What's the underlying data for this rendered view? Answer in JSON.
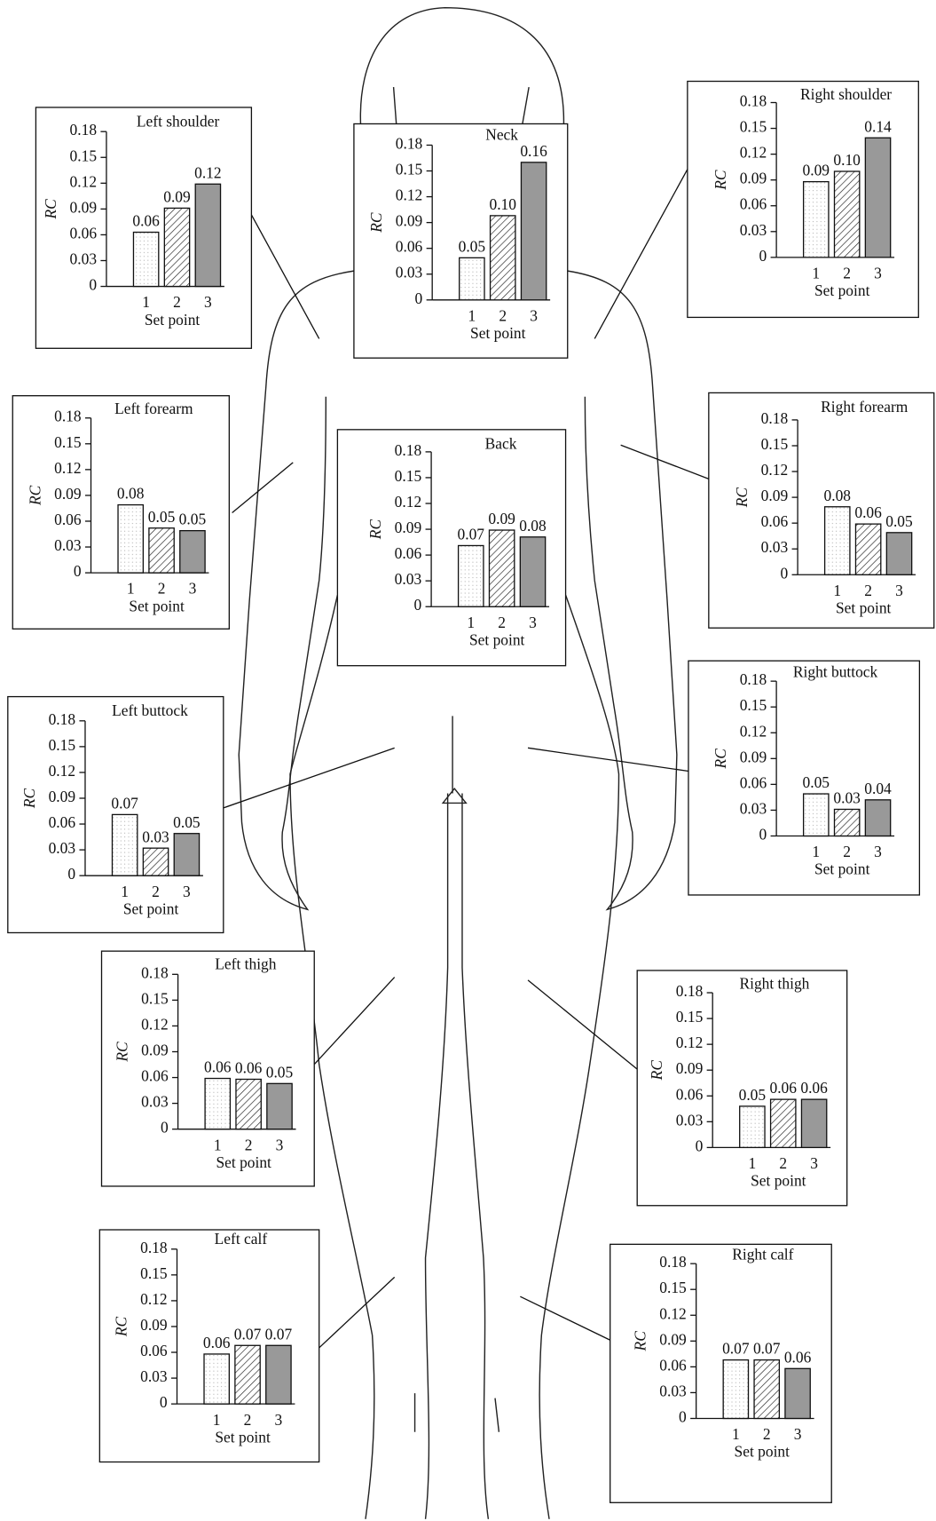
{
  "chart_data": [
    {
      "type": "bar",
      "title": "Left shoulder",
      "ylabel": "RC",
      "xlabel": "Set point",
      "categories": [
        "1",
        "2",
        "3"
      ],
      "values": [
        0.063,
        0.091,
        0.119
      ],
      "value_labels": [
        "0.06",
        "0.09",
        "0.12"
      ],
      "ylim": [
        0,
        0.18
      ],
      "yticks": [
        0,
        0.03,
        0.06,
        0.09,
        0.12,
        0.15,
        0.18
      ]
    },
    {
      "type": "bar",
      "title": "Neck",
      "ylabel": "RC",
      "xlabel": "Set point",
      "categories": [
        "1",
        "2",
        "3"
      ],
      "values": [
        0.049,
        0.098,
        0.16
      ],
      "value_labels": [
        "0.05",
        "0.10",
        "0.16"
      ],
      "ylim": [
        0,
        0.18
      ],
      "yticks": [
        0,
        0.03,
        0.06,
        0.09,
        0.12,
        0.15,
        0.18
      ]
    },
    {
      "type": "bar",
      "title": "Right shoulder",
      "ylabel": "RC",
      "xlabel": "Set point",
      "categories": [
        "1",
        "2",
        "3"
      ],
      "values": [
        0.088,
        0.1,
        0.139
      ],
      "value_labels": [
        "0.09",
        "0.10",
        "0.14"
      ],
      "ylim": [
        0,
        0.18
      ],
      "yticks": [
        0,
        0.03,
        0.06,
        0.09,
        0.12,
        0.15,
        0.18
      ]
    },
    {
      "type": "bar",
      "title": "Left forearm",
      "ylabel": "RC",
      "xlabel": "Set point",
      "categories": [
        "1",
        "2",
        "3"
      ],
      "values": [
        0.079,
        0.052,
        0.049
      ],
      "value_labels": [
        "0.08",
        "0.05",
        "0.05"
      ],
      "ylim": [
        0,
        0.18
      ],
      "yticks": [
        0,
        0.03,
        0.06,
        0.09,
        0.12,
        0.15,
        0.18
      ]
    },
    {
      "type": "bar",
      "title": "Back",
      "ylabel": "RC",
      "xlabel": "Set point",
      "categories": [
        "1",
        "2",
        "3"
      ],
      "values": [
        0.071,
        0.089,
        0.081
      ],
      "value_labels": [
        "0.07",
        "0.09",
        "0.08"
      ],
      "ylim": [
        0,
        0.18
      ],
      "yticks": [
        0,
        0.03,
        0.06,
        0.09,
        0.12,
        0.15,
        0.18
      ]
    },
    {
      "type": "bar",
      "title": "Right forearm",
      "ylabel": "RC",
      "xlabel": "Set point",
      "categories": [
        "1",
        "2",
        "3"
      ],
      "values": [
        0.079,
        0.059,
        0.049
      ],
      "value_labels": [
        "0.08",
        "0.06",
        "0.05"
      ],
      "ylim": [
        0,
        0.18
      ],
      "yticks": [
        0,
        0.03,
        0.06,
        0.09,
        0.12,
        0.15,
        0.18
      ]
    },
    {
      "type": "bar",
      "title": "Left buttock",
      "ylabel": "RC",
      "xlabel": "Set point",
      "categories": [
        "1",
        "2",
        "3"
      ],
      "values": [
        0.071,
        0.032,
        0.049
      ],
      "value_labels": [
        "0.07",
        "0.03",
        "0.05"
      ],
      "ylim": [
        0,
        0.18
      ],
      "yticks": [
        0,
        0.03,
        0.06,
        0.09,
        0.12,
        0.15,
        0.18
      ]
    },
    {
      "type": "bar",
      "title": "Right buttock",
      "ylabel": "RC",
      "xlabel": "Set point",
      "categories": [
        "1",
        "2",
        "3"
      ],
      "values": [
        0.049,
        0.031,
        0.042
      ],
      "value_labels": [
        "0.05",
        "0.03",
        "0.04"
      ],
      "ylim": [
        0,
        0.18
      ],
      "yticks": [
        0,
        0.03,
        0.06,
        0.09,
        0.12,
        0.15,
        0.18
      ]
    },
    {
      "type": "bar",
      "title": "Left thigh",
      "ylabel": "RC",
      "xlabel": "Set point",
      "categories": [
        "1",
        "2",
        "3"
      ],
      "values": [
        0.059,
        0.058,
        0.053
      ],
      "value_labels": [
        "0.06",
        "0.06",
        "0.05"
      ],
      "ylim": [
        0,
        0.18
      ],
      "yticks": [
        0,
        0.03,
        0.06,
        0.09,
        0.12,
        0.15,
        0.18
      ]
    },
    {
      "type": "bar",
      "title": "Right thigh",
      "ylabel": "RC",
      "xlabel": "Set point",
      "categories": [
        "1",
        "2",
        "3"
      ],
      "values": [
        0.048,
        0.056,
        0.056
      ],
      "value_labels": [
        "0.05",
        "0.06",
        "0.06"
      ],
      "ylim": [
        0,
        0.18
      ],
      "yticks": [
        0,
        0.03,
        0.06,
        0.09,
        0.12,
        0.15,
        0.18
      ]
    },
    {
      "type": "bar",
      "title": "Left calf",
      "ylabel": "RC",
      "xlabel": "Set point",
      "categories": [
        "1",
        "2",
        "3"
      ],
      "values": [
        0.058,
        0.068,
        0.068
      ],
      "value_labels": [
        "0.06",
        "0.07",
        "0.07"
      ],
      "ylim": [
        0,
        0.18
      ],
      "yticks": [
        0,
        0.03,
        0.06,
        0.09,
        0.12,
        0.15,
        0.18
      ]
    },
    {
      "type": "bar",
      "title": "Right calf",
      "ylabel": "RC",
      "xlabel": "Set point",
      "categories": [
        "1",
        "2",
        "3"
      ],
      "values": [
        0.068,
        0.068,
        0.058
      ],
      "value_labels": [
        "0.07",
        "0.07",
        "0.06"
      ],
      "ylim": [
        0,
        0.18
      ],
      "yticks": [
        0,
        0.03,
        0.06,
        0.09,
        0.12,
        0.15,
        0.18
      ]
    }
  ]
}
